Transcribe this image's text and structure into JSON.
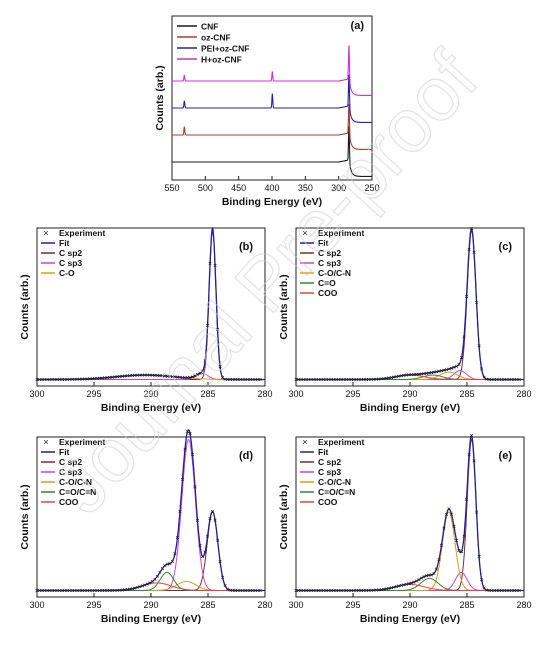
{
  "watermark": "Journal Pre-proof",
  "colors": {
    "black": "#1a1a1a",
    "red": "#b03a2e",
    "blue": "#2222aa",
    "magenta": "#cc33cc",
    "orange": "#d4a017",
    "green": "#2e8b2e",
    "coral": "#e8433a",
    "fit": "#1f1fa0",
    "csp2": "#7b2d2d",
    "csp3": "#cc44cc",
    "co": "#d4a017",
    "marker": "#222222"
  },
  "chart_data": [
    {
      "panel": "a",
      "label": "(a)",
      "type": "line",
      "xlabel": "Binding Energy (eV)",
      "ylabel": "Counts (arb.)",
      "xlim": [
        550,
        250
      ],
      "xticks": [
        550,
        500,
        450,
        400,
        350,
        300,
        250
      ],
      "legend_position": "top-left",
      "series": [
        {
          "name": "CNF",
          "color": "#1a1a1a",
          "offset": 0,
          "peaks": [
            [
              284.6,
              0.3,
              1.6
            ],
            [
              531.5,
              0.0,
              1.5
            ],
            [
              399.5,
              0.0,
              1.5
            ]
          ]
        },
        {
          "name": "oz-CNF",
          "color": "#b03a2e",
          "offset": 1,
          "peaks": [
            [
              284.6,
              0.26,
              1.6
            ],
            [
              531.5,
              0.07,
              1.5
            ],
            [
              399.5,
              0.0,
              1.5
            ]
          ]
        },
        {
          "name": "PEI+oz-CNF",
          "color": "#2222aa",
          "offset": 2,
          "peaks": [
            [
              284.6,
              0.28,
              1.6
            ],
            [
              531.5,
              0.06,
              1.5
            ],
            [
              399.5,
              0.12,
              1.5
            ]
          ]
        },
        {
          "name": "H+oz-CNF",
          "color": "#cc33cc",
          "offset": 3,
          "peaks": [
            [
              284.6,
              0.3,
              1.6
            ],
            [
              531.5,
              0.05,
              1.5
            ],
            [
              399.5,
              0.08,
              1.5
            ]
          ]
        }
      ]
    },
    {
      "panel": "b",
      "label": "(b)",
      "type": "line",
      "xlabel": "Binding Energy (eV)",
      "ylabel": "Counts (arb.)",
      "xlim": [
        300,
        280
      ],
      "xticks": [
        300,
        295,
        290,
        285,
        280
      ],
      "legend": [
        "Experiment",
        "Fit",
        "C sp2",
        "C sp3",
        "C-O"
      ],
      "components": [
        {
          "name": "C sp2",
          "center": 284.6,
          "amplitude": 1.0,
          "fwhm": 0.7,
          "color": "#7b2d2d"
        },
        {
          "name": "C sp3",
          "center": 285.5,
          "amplitude": 0.04,
          "fwhm": 1.2,
          "color": "#cc44cc"
        },
        {
          "name": "C-O",
          "center": 290.5,
          "amplitude": 0.03,
          "fwhm": 6.0,
          "color": "#d4a017"
        }
      ]
    },
    {
      "panel": "c",
      "label": "(c)",
      "type": "line",
      "xlabel": "Binding Energy (eV)",
      "ylabel": "Counts (arb.)",
      "xlim": [
        300,
        280
      ],
      "xticks": [
        300,
        295,
        290,
        285,
        280
      ],
      "legend": [
        "Experiment",
        "Fit",
        "C sp2",
        "C sp3",
        "C-O/C-N",
        "C=O",
        "COO"
      ],
      "components": [
        {
          "name": "C sp2",
          "center": 284.6,
          "amplitude": 1.0,
          "fwhm": 0.9,
          "color": "#7b2d2d"
        },
        {
          "name": "C sp3",
          "center": 285.6,
          "amplitude": 0.06,
          "fwhm": 1.3,
          "color": "#cc44cc"
        },
        {
          "name": "C-O/C-N",
          "center": 286.6,
          "amplitude": 0.05,
          "fwhm": 1.8,
          "color": "#d4a017"
        },
        {
          "name": "C=O",
          "center": 288.0,
          "amplitude": 0.03,
          "fwhm": 2.0,
          "color": "#2e8b2e"
        },
        {
          "name": "COO",
          "center": 290.0,
          "amplitude": 0.03,
          "fwhm": 3.0,
          "color": "#e8433a"
        }
      ]
    },
    {
      "panel": "d",
      "label": "(d)",
      "type": "line",
      "xlabel": "Binding Energy (eV)",
      "ylabel": "Counts (arb.)",
      "xlim": [
        300,
        280
      ],
      "xticks": [
        300,
        295,
        290,
        285,
        280
      ],
      "legend": [
        "Experiment",
        "Fit",
        "C sp2",
        "C sp3",
        "C-O/C-N",
        "C=O/C=N",
        "COO"
      ],
      "components": [
        {
          "name": "C sp2",
          "center": 284.6,
          "amplitude": 0.52,
          "fwhm": 1.1,
          "color": "#7b2d2d"
        },
        {
          "name": "C sp3",
          "center": 286.7,
          "amplitude": 1.0,
          "fwhm": 1.4,
          "color": "#cc44cc"
        },
        {
          "name": "C-O/C-N",
          "center": 286.9,
          "amplitude": 0.06,
          "fwhm": 2.0,
          "color": "#d4a017"
        },
        {
          "name": "C=O/C=N",
          "center": 288.6,
          "amplitude": 0.12,
          "fwhm": 1.4,
          "color": "#2e8b2e"
        },
        {
          "name": "COO",
          "center": 289.5,
          "amplitude": 0.05,
          "fwhm": 3.0,
          "color": "#e8433a"
        }
      ]
    },
    {
      "panel": "e",
      "label": "(e)",
      "type": "line",
      "xlabel": "Binding Energy (eV)",
      "ylabel": "Counts (arb.)",
      "xlim": [
        300,
        280
      ],
      "xticks": [
        300,
        295,
        290,
        285,
        280
      ],
      "legend": [
        "Experiment",
        "Fit",
        "C sp2",
        "C sp3",
        "C-O/C-N",
        "C=O/C=N",
        "COO"
      ],
      "components": [
        {
          "name": "C sp2",
          "center": 284.6,
          "amplitude": 1.0,
          "fwhm": 0.9,
          "color": "#7b2d2d"
        },
        {
          "name": "C sp3",
          "center": 285.5,
          "amplitude": 0.12,
          "fwhm": 1.2,
          "color": "#cc44cc"
        },
        {
          "name": "C-O/C-N",
          "center": 286.6,
          "amplitude": 0.52,
          "fwhm": 1.3,
          "color": "#d4a017"
        },
        {
          "name": "C=O/C=N",
          "center": 288.3,
          "amplitude": 0.08,
          "fwhm": 1.8,
          "color": "#2e8b2e"
        },
        {
          "name": "COO",
          "center": 290.0,
          "amplitude": 0.04,
          "fwhm": 3.0,
          "color": "#e8433a"
        }
      ]
    }
  ]
}
